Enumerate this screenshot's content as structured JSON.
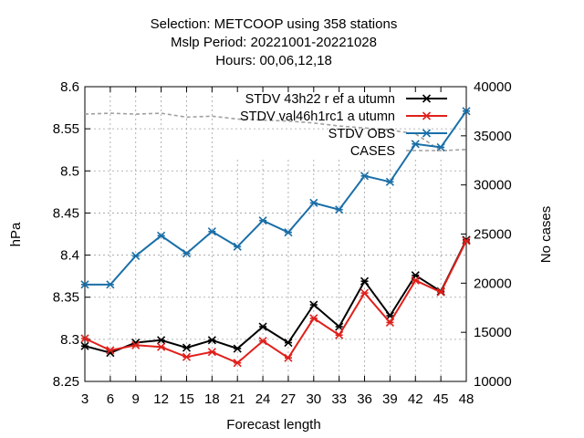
{
  "chart_data": {
    "type": "line",
    "title": [
      "Selection: METCOOP using   358 stations",
      "Mslp   Period: 20221001-20221028",
      "Hours:  00,06,12,18"
    ],
    "xlabel": "Forecast length",
    "ylabel": "hPa",
    "y2label": "No cases",
    "x": [
      3,
      6,
      9,
      12,
      15,
      18,
      21,
      24,
      27,
      30,
      33,
      36,
      39,
      42,
      45,
      48
    ],
    "xticks": [
      "3",
      "6",
      "9",
      "12",
      "15",
      "18",
      "21",
      "24",
      "27",
      "30",
      "33",
      "36",
      "39",
      "42",
      "45",
      "48"
    ],
    "ylim": [
      8.25,
      8.6
    ],
    "yticks": [
      "8.25",
      "8.3",
      "8.35",
      "8.4",
      "8.45",
      "8.5",
      "8.55",
      "8.6"
    ],
    "y2lim": [
      10000,
      40000
    ],
    "y2ticks": [
      "10000",
      "15000",
      "20000",
      "25000",
      "30000",
      "35000",
      "40000"
    ],
    "grid": true,
    "legend_position": "top-right",
    "series": [
      {
        "name": "STDV 43h22_ref_autumn",
        "name_display": "STDV 43h22 r ef a utumn",
        "color": "#000000",
        "axis": "y",
        "values": [
          8.292,
          8.284,
          8.296,
          8.299,
          8.29,
          8.299,
          8.289,
          8.315,
          8.296,
          8.341,
          8.315,
          8.369,
          8.328,
          8.376,
          8.357,
          8.418
        ]
      },
      {
        "name": "STDV val46h1rc1_autumn",
        "name_display": "STDV val46h1rc1 a utumn",
        "color": "#e0201b",
        "axis": "y",
        "values": [
          8.301,
          8.287,
          8.293,
          8.291,
          8.279,
          8.285,
          8.272,
          8.298,
          8.278,
          8.325,
          8.305,
          8.355,
          8.32,
          8.37,
          8.356,
          8.417
        ]
      },
      {
        "name": "STDV OBS",
        "color": "#1a6fa8",
        "axis": "y",
        "values": [
          8.365,
          8.365,
          8.399,
          8.423,
          8.402,
          8.428,
          8.41,
          8.441,
          8.427,
          8.462,
          8.454,
          8.494,
          8.487,
          8.532,
          8.528,
          8.571
        ]
      },
      {
        "name": "CASES",
        "color": "#a0a0a0",
        "axis": "y2",
        "dashed": true,
        "values": [
          37200,
          37300,
          37200,
          37300,
          36900,
          37000,
          36700,
          36600,
          36500,
          36300,
          36000,
          35800,
          35600,
          35200,
          33500,
          33600
        ]
      }
    ]
  }
}
